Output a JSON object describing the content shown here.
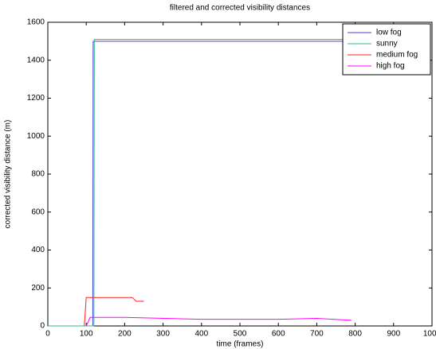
{
  "chart_data": {
    "type": "line",
    "title": "filtered and corrected visibility distances",
    "x_label": "time (frames)",
    "y_label": "corrected visibility distance (m)",
    "xlim": [
      0,
      1000
    ],
    "xticks": [
      0,
      100,
      200,
      300,
      400,
      500,
      600,
      700,
      800,
      900,
      1000
    ],
    "ylim": [
      0,
      1600
    ],
    "yticks": [
      0,
      200,
      400,
      600,
      800,
      1000,
      1200,
      1400,
      1600
    ],
    "legend": "top-right",
    "series": [
      {
        "name": "low fog",
        "color": "#4444cc",
        "x": [
          0,
          117,
          118,
          780
        ],
        "values": [
          0,
          0,
          1500,
          1500
        ]
      },
      {
        "name": "sunny",
        "color": "#33bb88",
        "x": [
          0,
          120,
          121,
          780
        ],
        "values": [
          0,
          0,
          1510,
          1510
        ]
      },
      {
        "name": "medium fog",
        "color": "#ff2020",
        "x": [
          95,
          100,
          220,
          230,
          250
        ],
        "values": [
          0,
          150,
          150,
          130,
          130
        ]
      },
      {
        "name": "high fog",
        "color": "#ff00ff",
        "x": [
          100,
          110,
          200,
          400,
          600,
          700,
          790
        ],
        "values": [
          0,
          45,
          45,
          35,
          35,
          40,
          30
        ]
      }
    ]
  }
}
